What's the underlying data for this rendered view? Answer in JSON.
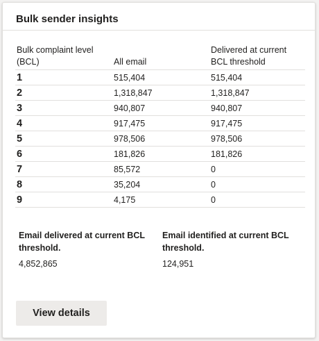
{
  "card": {
    "title": "Bulk sender insights"
  },
  "table": {
    "headers": {
      "bcl": "Bulk complaint level (BCL)",
      "all_email": "All email",
      "delivered": "Delivered at current BCL threshold"
    },
    "rows": [
      {
        "level": "1",
        "all_email": "515,404",
        "delivered": "515,404"
      },
      {
        "level": "2",
        "all_email": "1,318,847",
        "delivered": "1,318,847"
      },
      {
        "level": "3",
        "all_email": "940,807",
        "delivered": "940,807"
      },
      {
        "level": "4",
        "all_email": "917,475",
        "delivered": "917,475"
      },
      {
        "level": "5",
        "all_email": "978,506",
        "delivered": "978,506"
      },
      {
        "level": "6",
        "all_email": "181,826",
        "delivered": "181,826"
      },
      {
        "level": "7",
        "all_email": "85,572",
        "delivered": "0"
      },
      {
        "level": "8",
        "all_email": "35,204",
        "delivered": "0"
      },
      {
        "level": "9",
        "all_email": "4,175",
        "delivered": "0"
      }
    ]
  },
  "summary": {
    "delivered_label": "Email delivered at current BCL threshold.",
    "delivered_value": "4,852,865",
    "identified_label": "Email identified at current BCL threshold.",
    "identified_value": "124,951"
  },
  "actions": {
    "view_details_label": "View details"
  }
}
